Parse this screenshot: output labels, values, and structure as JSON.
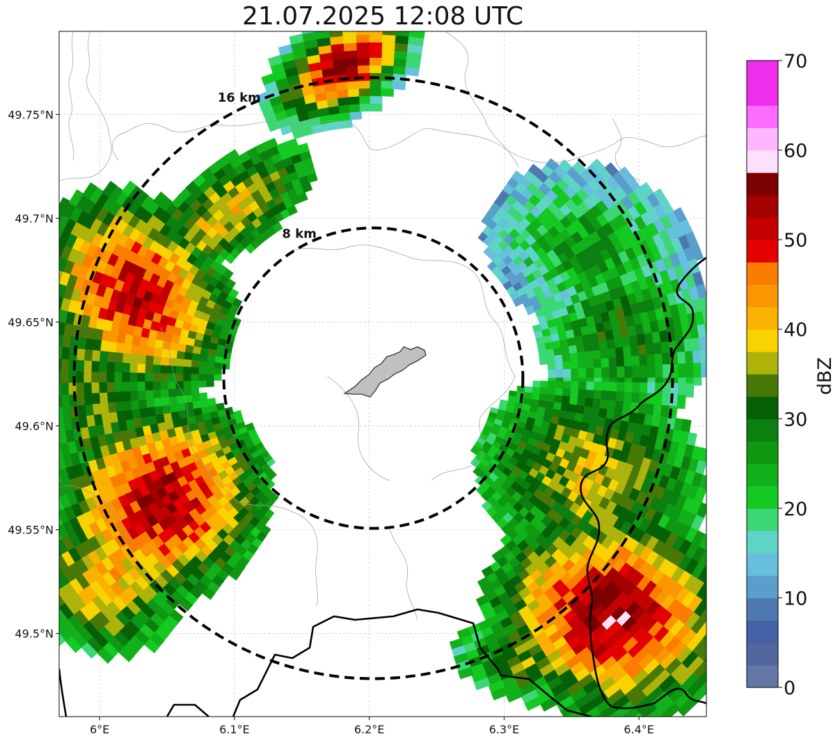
{
  "title": "21.07.2025 12:08 UTC",
  "map": {
    "extent": {
      "lon_min": 5.97,
      "lon_max": 6.45,
      "lat_min": 49.46,
      "lat_max": 49.79
    },
    "lon_ticks": [
      {
        "value": 6.0,
        "label": "6°E"
      },
      {
        "value": 6.1,
        "label": "6.1°E"
      },
      {
        "value": 6.2,
        "label": "6.2°E"
      },
      {
        "value": 6.3,
        "label": "6.3°E"
      },
      {
        "value": 6.4,
        "label": "6.4°E"
      }
    ],
    "lat_ticks": [
      {
        "value": 49.75,
        "label": "49.75°N"
      },
      {
        "value": 49.7,
        "label": "49.7°N"
      },
      {
        "value": 49.65,
        "label": "49.65°N"
      },
      {
        "value": 49.6,
        "label": "49.6°N"
      },
      {
        "value": 49.55,
        "label": "49.55°N"
      },
      {
        "value": 49.5,
        "label": "49.5°N"
      }
    ],
    "center": {
      "lon": 6.203,
      "lat": 49.623
    },
    "range_rings": [
      {
        "label": "8 km",
        "radius_km": 8
      },
      {
        "label": "16 km",
        "radius_km": 16
      }
    ],
    "grid": true,
    "grid_color": "#bbbbbb",
    "border_color": "#000000",
    "admin_line_color": "#999999",
    "city_fill": "#c0c0c0"
  },
  "colorbar": {
    "label": "dBZ",
    "min": 0,
    "max": 70,
    "step": 2.5,
    "tick_labels": [
      "0",
      "10",
      "20",
      "30",
      "40",
      "50",
      "60",
      "70"
    ],
    "colors": [
      "#6577a6",
      "#5267a0",
      "#4661a6",
      "#4e79b0",
      "#5a9fcb",
      "#66bfdd",
      "#5fd3c6",
      "#3dd675",
      "#14c922",
      "#12b01a",
      "#0f9812",
      "#0b7f10",
      "#066006",
      "#487807",
      "#adb30a",
      "#f9d300",
      "#fbb100",
      "#fb9500",
      "#fb7d00",
      "#e40000",
      "#c50000",
      "#a30000",
      "#7b0000",
      "#fde1fc",
      "#feb6fe",
      "#fe6cfe",
      "#ee2eeb",
      "#ee2eeb"
    ]
  }
}
